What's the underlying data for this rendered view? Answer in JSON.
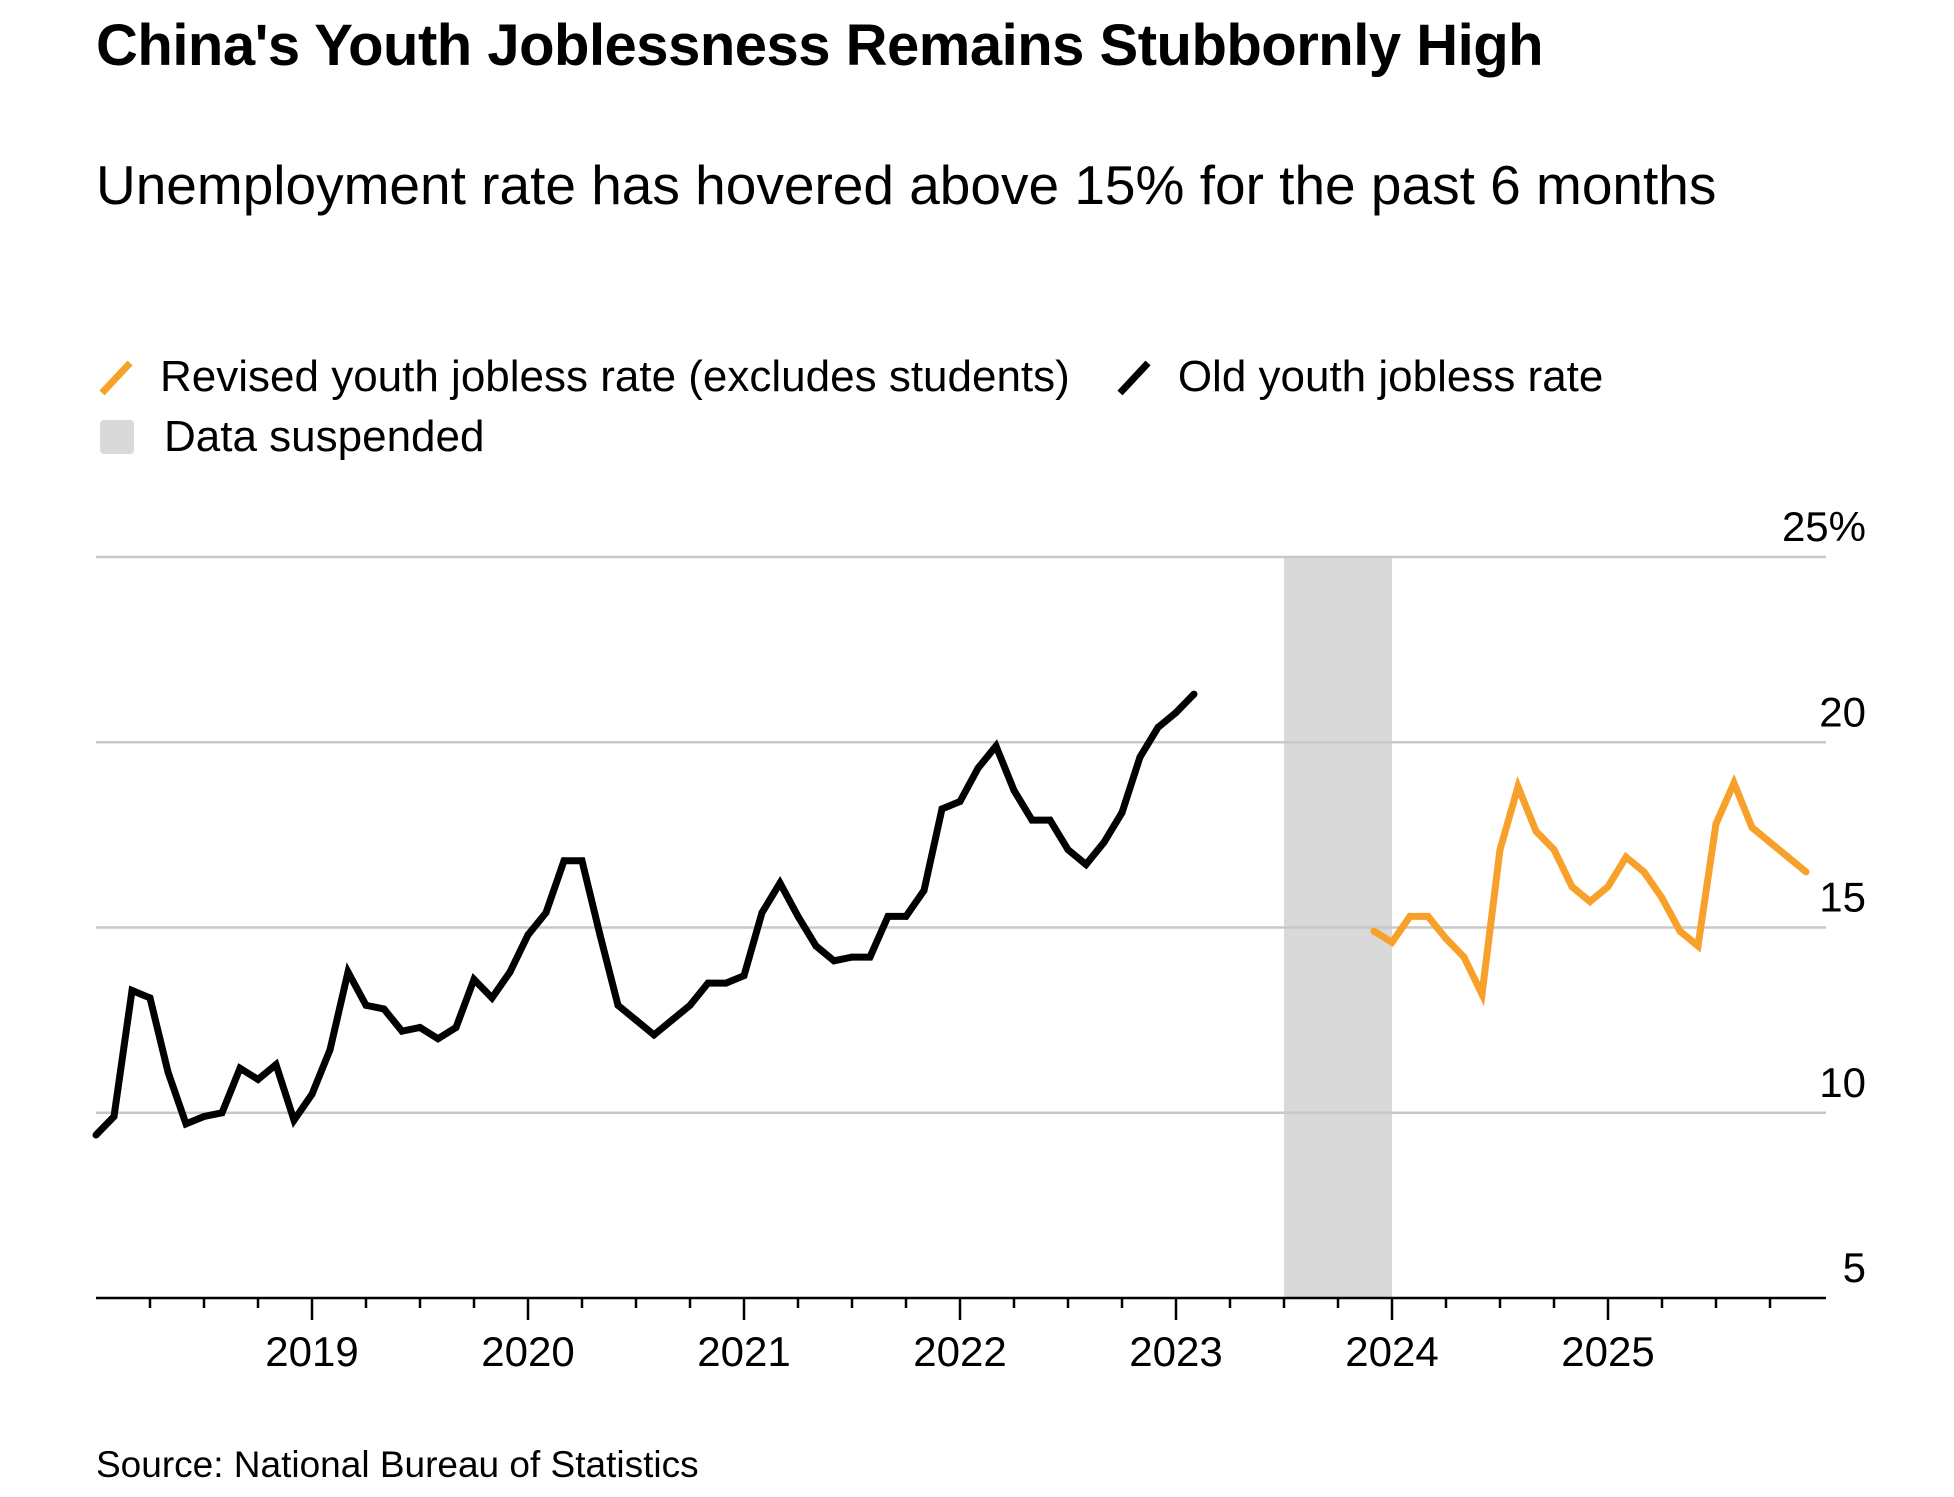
{
  "title": "China's Youth Joblessness Remains Stubbornly High",
  "subtitle": "Unemployment rate has hovered above 15% for the past 6 months",
  "legend": [
    {
      "label": "Revised youth jobless rate (excludes students)",
      "color": "#f7a12a",
      "icon": "line-swatch"
    },
    {
      "label": "Old youth jobless rate",
      "color": "#000000",
      "icon": "line-swatch"
    },
    {
      "label": "Data suspended",
      "color": "#d9d9d9",
      "icon": "square-swatch"
    }
  ],
  "source": "Source: National Bureau of Statistics",
  "chart_data": {
    "type": "line",
    "title": "China's Youth Joblessness Remains Stubbornly High",
    "xlabel": "",
    "ylabel": "",
    "ylim": [
      5,
      25
    ],
    "y_ticks": [
      5,
      10,
      15,
      20,
      25
    ],
    "y_tick_labels": [
      "5",
      "10",
      "15",
      "20",
      "25%"
    ],
    "x_ticks": [
      2019,
      2020,
      2021,
      2022,
      2023,
      2024,
      2025
    ],
    "x_tick_labels": [
      "2019",
      "2020",
      "2021",
      "2022",
      "2023",
      "2024",
      "2025"
    ],
    "x_range": [
      "2018-01",
      "2025-12"
    ],
    "y_axis_position": "right",
    "grid": true,
    "shaded_region": {
      "label": "Data suspended",
      "start": "2023-07",
      "end": "2023-12",
      "color": "#d9d9d9"
    },
    "series": [
      {
        "name": "Old youth jobless rate",
        "color": "#000000",
        "start": "2018-01",
        "values": [
          9.4,
          9.9,
          13.3,
          13.1,
          11.1,
          9.7,
          9.9,
          10.0,
          11.2,
          10.9,
          11.3,
          9.8,
          10.5,
          11.7,
          13.8,
          12.9,
          12.8,
          12.2,
          12.3,
          12.0,
          12.3,
          13.6,
          13.1,
          13.8,
          14.8,
          15.4,
          16.8,
          16.8,
          14.8,
          12.9,
          12.5,
          12.1,
          12.5,
          12.9,
          13.5,
          13.5,
          13.7,
          15.4,
          16.2,
          15.3,
          14.5,
          14.1,
          14.2,
          14.2,
          15.3,
          15.3,
          16.0,
          18.2,
          18.4,
          19.3,
          19.9,
          18.7,
          17.9,
          17.9,
          17.1,
          16.7,
          17.3,
          18.1,
          19.6,
          20.4,
          20.8,
          21.3
        ]
      },
      {
        "name": "Revised youth jobless rate (excludes students)",
        "color": "#f7a12a",
        "start": "2023-12",
        "values": [
          14.9,
          14.6,
          15.3,
          15.3,
          14.7,
          14.2,
          13.2,
          17.1,
          18.8,
          17.6,
          17.1,
          16.1,
          15.7,
          16.1,
          16.9,
          16.5,
          15.8,
          14.9,
          14.5,
          17.8,
          18.9,
          17.7,
          17.3,
          16.9,
          16.5
        ]
      }
    ]
  }
}
